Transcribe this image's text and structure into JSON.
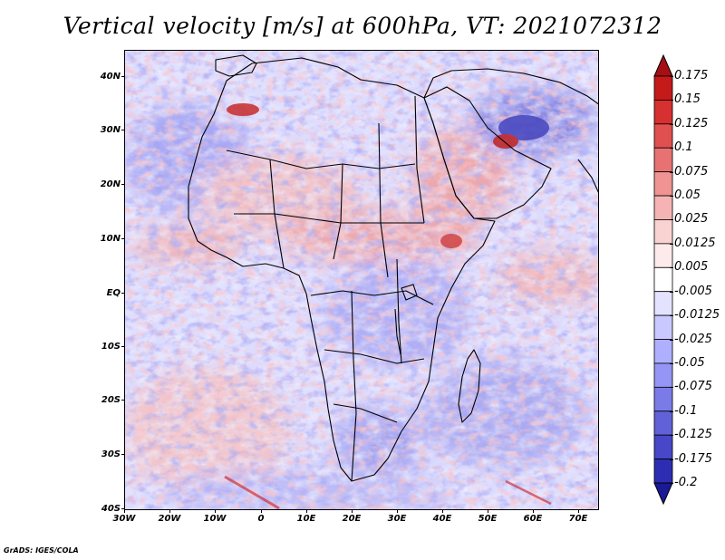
{
  "title": "Vertical velocity [m/s] at 600hPa, VT: 2021072312",
  "footer": "GrADS: IGES/COLA",
  "map": {
    "lat_labels": [
      "40N",
      "30N",
      "20N",
      "10N",
      "EQ",
      "10S",
      "20S",
      "30S",
      "40S"
    ],
    "lon_labels": [
      "30W",
      "20W",
      "10W",
      "0",
      "10E",
      "20E",
      "30E",
      "40E",
      "50E",
      "60E",
      "70E"
    ],
    "colors": {
      "ocean_base": "#e8e8ff",
      "strong_up": "#b01818",
      "strong_down": "#2020b0",
      "border": "#000000"
    }
  },
  "colorbar": {
    "labels": [
      "0.175",
      "0.15",
      "0.125",
      "0.1",
      "0.075",
      "0.05",
      "0.025",
      "0.0125",
      "0.005",
      "-0.005",
      "-0.0125",
      "-0.025",
      "-0.05",
      "-0.075",
      "-0.1",
      "-0.125",
      "-0.175",
      "-0.2"
    ],
    "colors": [
      "#a50f15",
      "#c41a1a",
      "#d63030",
      "#e05050",
      "#e87272",
      "#ef9393",
      "#f5b3b3",
      "#f9d2d2",
      "#fdeaea",
      "#ffffff",
      "#e3e3ff",
      "#c9c9ff",
      "#afafff",
      "#9595f5",
      "#7b7be8",
      "#6161d8",
      "#4747c8",
      "#2d2db4",
      "#1a1a96"
    ]
  }
}
